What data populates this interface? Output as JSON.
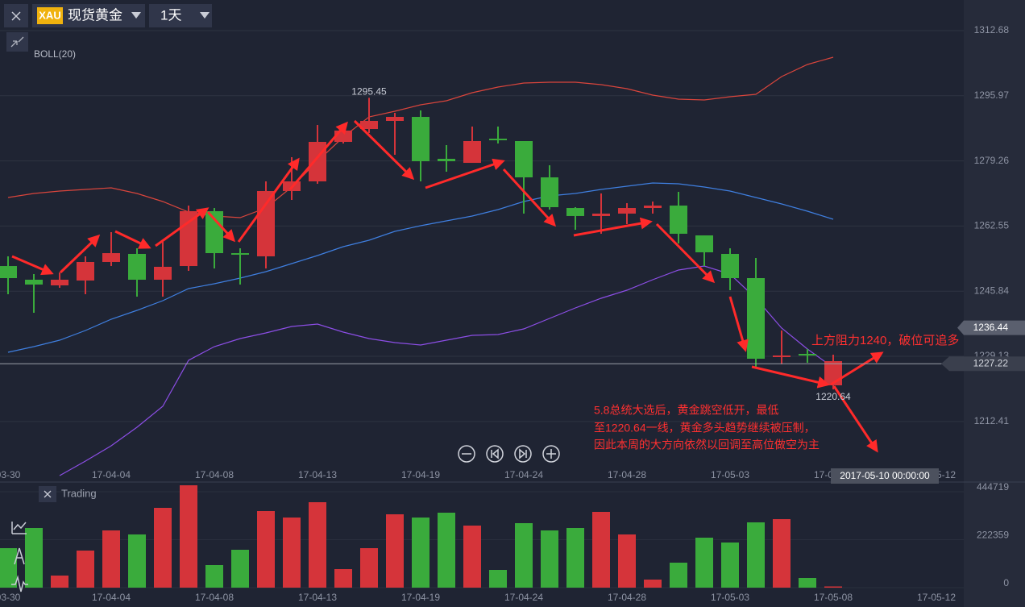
{
  "toolbar": {
    "symbol_badge": "XAU",
    "symbol_name": "现货黄金",
    "interval": "1天"
  },
  "chart_data": [
    {
      "type": "candlestick",
      "indicator": "BOLL(20)",
      "categories": [
        "03-30",
        null,
        null,
        null,
        "17-04-04",
        null,
        null,
        null,
        "17-04-08",
        null,
        null,
        null,
        "17-04-13",
        null,
        null,
        null,
        "17-04-19",
        null,
        null,
        null,
        "17-04-24",
        null,
        null,
        null,
        "17-04-28",
        null,
        null,
        null,
        "17-05-03",
        null,
        null,
        null,
        "17-05-08",
        null,
        null,
        null,
        "17-05-12"
      ],
      "open": [
        1252.29,
        1248.78,
        1247.33,
        1248.57,
        1253.33,
        1255.4,
        1248.78,
        1252.29,
        1266.36,
        1255.6,
        1254.78,
        1271.53,
        1274.01,
        1284.14,
        1287.45,
        1289.52,
        1290.55,
        1279.8,
        1278.76,
        1284.97,
        1284.35,
        1275.04,
        1267.18,
        1265.12,
        1265.74,
        1267.18,
        1267.8,
        1260.15,
        1255.4,
        1249.19,
        1228.93,
        1229.75,
        1221.69,
        null,
        null,
        null,
        null
      ],
      "high": [
        1254.78,
        1250.23,
        1250.64,
        1254.78,
        1260.98,
        1256.84,
        1258.5,
        1267.8,
        1267.18,
        1256.84,
        1274.01,
        1280.21,
        1288.48,
        1287.86,
        1295.45,
        1291.59,
        1292.21,
        1283.31,
        1288.07,
        1288.07,
        1284.35,
        1278.14,
        1267.39,
        1270.91,
        1268.42,
        1268.84,
        1271.32,
        1260.15,
        1256.84,
        1254.36,
        1235.75,
        1230.99,
        1229.55,
        null,
        null,
        null,
        null
      ],
      "low": [
        1245.06,
        1240.3,
        1246.71,
        1245.06,
        1252.29,
        1244.44,
        1244.44,
        1251.05,
        1251.67,
        1247.54,
        1251.67,
        1269.25,
        1273.39,
        1283.73,
        1286.42,
        1280.83,
        1274.01,
        1276.49,
        1278.76,
        1283.73,
        1265.74,
        1266.77,
        1261.6,
        1260.57,
        1263.05,
        1265.74,
        1258.08,
        1252.29,
        1246.09,
        1226.44,
        1227.06,
        1227.48,
        1220.64,
        null,
        null,
        null,
        null
      ],
      "close": [
        1249.19,
        1247.54,
        1248.78,
        1253.33,
        1255.6,
        1248.78,
        1252.09,
        1266.36,
        1255.6,
        1255.19,
        1271.53,
        1274.01,
        1284.14,
        1287.04,
        1289.52,
        1290.55,
        1279.18,
        1279.18,
        1284.35,
        1284.56,
        1275.04,
        1267.39,
        1265.12,
        1265.74,
        1267.18,
        1267.8,
        1260.57,
        1255.81,
        1249.19,
        1228.51,
        1229.34,
        1229.55,
        1227.89,
        null,
        null,
        null,
        null
      ],
      "up_color": "#d5343a",
      "down_color": "#3aab3c",
      "series": [
        {
          "color": "#d9453c",
          "values": [
            1269.87,
            1270.91,
            1271.53,
            1271.94,
            1272.36,
            1270.91,
            1268.84,
            1266.15,
            1265.12,
            1264.7,
            1267.19,
            1272.56,
            1279.18,
            1285.38,
            1290.55,
            1292.0,
            1293.66,
            1294.69,
            1296.76,
            1298.21,
            1299.24,
            1299.45,
            1299.45,
            1298.83,
            1297.79,
            1296.14,
            1295.1,
            1294.9,
            1295.72,
            1296.34,
            1300.89,
            1304.0,
            1305.86,
            null,
            null,
            null,
            null
          ]
        },
        {
          "color": "#3f7fe0",
          "values": [
            1230.17,
            1231.62,
            1233.27,
            1235.75,
            1238.65,
            1240.92,
            1243.4,
            1246.51,
            1247.75,
            1249.19,
            1250.85,
            1252.92,
            1254.98,
            1257.26,
            1258.91,
            1261.19,
            1262.64,
            1263.88,
            1265.12,
            1266.77,
            1268.84,
            1270.29,
            1270.91,
            1271.94,
            1272.77,
            1273.6,
            1273.39,
            1272.56,
            1271.53,
            1269.87,
            1268.22,
            1266.36,
            1264.29,
            null,
            null,
            null,
            null
          ]
        },
        {
          "color": "#8c4ee6",
          "values": [
            null,
            null,
            1198.53,
            1202.25,
            1206.18,
            1210.94,
            1216.31,
            1228.1,
            1231.62,
            1233.68,
            1235.13,
            1236.79,
            1237.41,
            1235.34,
            1233.68,
            1232.65,
            1232.03,
            1233.27,
            1234.51,
            1234.72,
            1236.17,
            1238.85,
            1241.54,
            1244.02,
            1246.09,
            1248.78,
            1251.26,
            1252.3,
            1250.23,
            1244.02,
            1236.37,
            1231.0,
            1226.24,
            null,
            null,
            null,
            null
          ]
        }
      ],
      "high_label_index": 14,
      "low_label_index": 32,
      "ylim": [
        1196.87,
        1320.54
      ],
      "yticks": [
        1312.68,
        1295.97,
        1279.26,
        1262.55,
        1245.84,
        1229.13,
        1212.41
      ],
      "grid": true,
      "price_labels": [
        1236.44,
        1227.22
      ],
      "crosshair_label": "2017-05-10 00:00:00",
      "annotations": [
        "上方阻力1240，破位可追多",
        "5.8总统大选后，黄金跳空低开，最低",
        "至1220.64一线，黄金多头趋势继续被压制，",
        "因此本周的大方向依然以回调至高位做空为主"
      ]
    },
    {
      "type": "bar",
      "title": "Trading",
      "categories": [
        "03-30",
        null,
        null,
        null,
        "17-04-04",
        null,
        null,
        null,
        "17-04-08",
        null,
        null,
        null,
        "17-04-13",
        null,
        null,
        null,
        "17-04-19",
        null,
        null,
        null,
        "17-04-24",
        null,
        null,
        null,
        "17-04-28",
        null,
        null,
        null,
        "17-05-03",
        null,
        null,
        null,
        "17-05-08",
        null,
        null,
        null,
        "17-05-12"
      ],
      "values": [
        183118,
        276545,
        56057,
        171907,
        265334,
        246649,
        369973,
        474612,
        104639,
        175644,
        355025,
        325128,
        396133,
        85953,
        183118,
        340076,
        325128,
        347550,
        287757,
        82216,
        298968,
        265334,
        276545,
        351287,
        246649,
        37371,
        115850,
        231700,
        209278,
        302705,
        317654,
        44845,
        5606,
        null,
        null,
        null,
        null
      ],
      "ylim": [
        0,
        489560
      ],
      "yticks": [
        0,
        222359,
        444719
      ]
    }
  ]
}
